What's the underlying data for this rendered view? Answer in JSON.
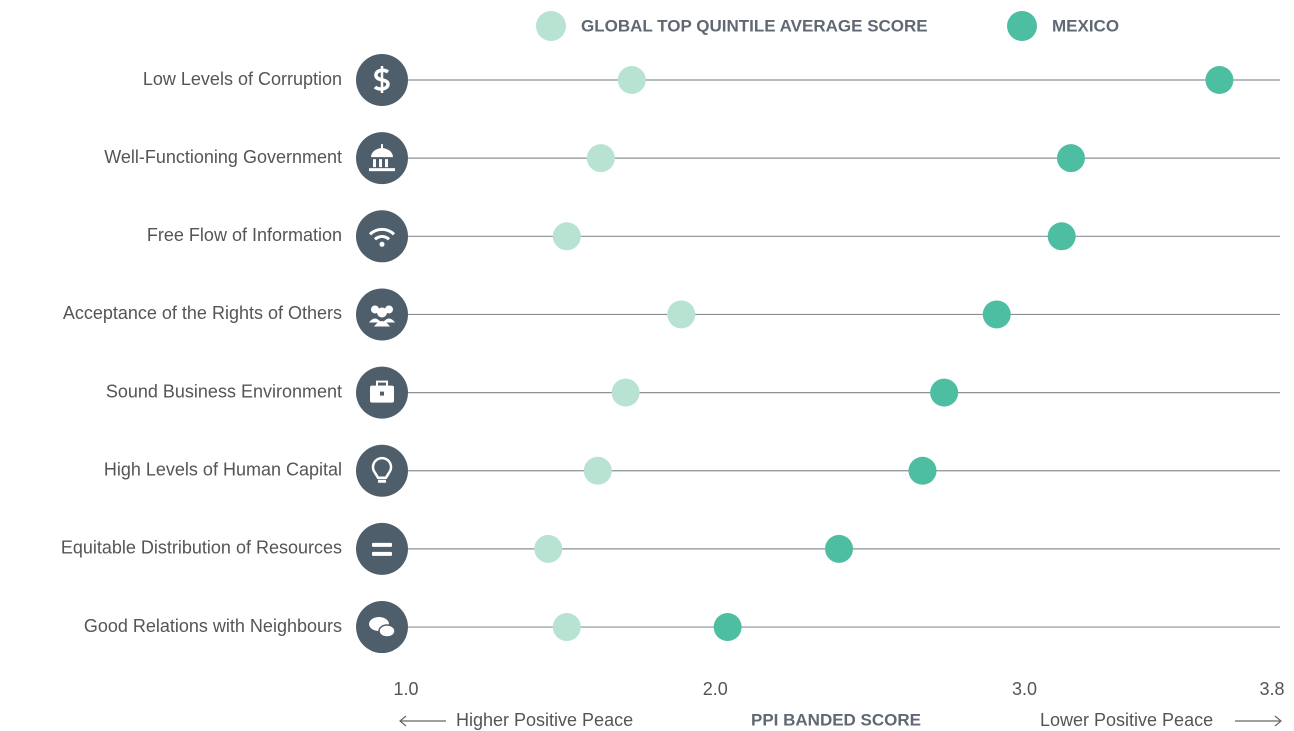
{
  "chart_data": {
    "type": "dot",
    "categories": [
      "Low Levels of Corruption",
      "Well-Functioning Government",
      "Free Flow of Information",
      "Acceptance of the Rights of Others",
      "Sound Business Environment",
      "High Levels of Human Capital",
      "Equitable Distribution of Resources",
      "Good Relations with Neighbours"
    ],
    "series": [
      {
        "name": "GLOBAL TOP QUINTILE AVERAGE SCORE",
        "color": "#b8e3d3",
        "values": [
          1.73,
          1.63,
          1.52,
          1.89,
          1.71,
          1.62,
          1.46,
          1.52
        ]
      },
      {
        "name": "MEXICO",
        "color": "#4dbea2",
        "values": [
          3.63,
          3.15,
          3.12,
          2.91,
          2.74,
          2.67,
          2.4,
          2.04
        ]
      }
    ],
    "xlim": [
      1.0,
      3.8
    ],
    "xticks": [
      {
        "value": 1.0,
        "label": "1.0"
      },
      {
        "value": 2.0,
        "label": "2.0"
      },
      {
        "value": 3.0,
        "label": "3.0"
      },
      {
        "value": 3.8,
        "label": "3.8"
      }
    ],
    "xlabel": "PPI BANDED SCORE",
    "annotations": [
      "Higher Positive Peace",
      "Lower Positive Peace"
    ],
    "legend": "top"
  }
}
